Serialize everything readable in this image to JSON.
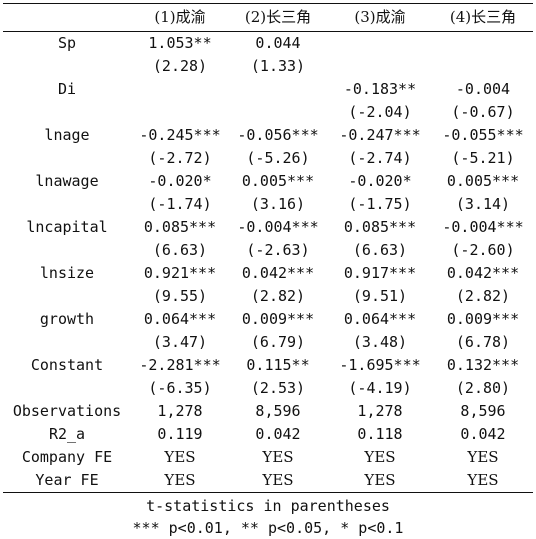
{
  "columns": [
    "",
    "(1)成渝",
    "(2)长三角",
    "(3)成渝",
    "(4)长三角"
  ],
  "rows": [
    {
      "label": "Sp",
      "values": [
        "1.053**",
        "0.044",
        "",
        ""
      ]
    },
    {
      "label": "",
      "values": [
        "(2.28)",
        "(1.33)",
        "",
        ""
      ]
    },
    {
      "label": "Di",
      "values": [
        "",
        "",
        "-0.183**",
        "-0.004"
      ]
    },
    {
      "label": "",
      "values": [
        "",
        "",
        "(-2.04)",
        "(-0.67)"
      ]
    },
    {
      "label": "lnage",
      "values": [
        "-0.245***",
        "-0.056***",
        "-0.247***",
        "-0.055***"
      ]
    },
    {
      "label": "",
      "values": [
        "(-2.72)",
        "(-5.26)",
        "(-2.74)",
        "(-5.21)"
      ]
    },
    {
      "label": "lnawage",
      "values": [
        "-0.020*",
        "0.005***",
        "-0.020*",
        "0.005***"
      ]
    },
    {
      "label": "",
      "values": [
        "(-1.74)",
        "(3.16)",
        "(-1.75)",
        "(3.14)"
      ]
    },
    {
      "label": "lncapital",
      "values": [
        "0.085***",
        "-0.004***",
        "0.085***",
        "-0.004***"
      ]
    },
    {
      "label": "",
      "values": [
        "(6.63)",
        "(-2.63)",
        "(6.63)",
        "(-2.60)"
      ]
    },
    {
      "label": "lnsize",
      "values": [
        "0.921***",
        "0.042***",
        "0.917***",
        "0.042***"
      ]
    },
    {
      "label": "",
      "values": [
        "(9.55)",
        "(2.82)",
        "(9.51)",
        "(2.82)"
      ]
    },
    {
      "label": "growth",
      "values": [
        "0.064***",
        "0.009***",
        "0.064***",
        "0.009***"
      ]
    },
    {
      "label": "",
      "values": [
        "(3.47)",
        "(6.79)",
        "(3.48)",
        "(6.78)"
      ]
    },
    {
      "label": "Constant",
      "values": [
        "-2.281***",
        "0.115**",
        "-1.695***",
        "0.132***"
      ]
    },
    {
      "label": "",
      "values": [
        "(-6.35)",
        "(2.53)",
        "(-4.19)",
        "(2.80)"
      ]
    },
    {
      "label": "Observations",
      "values": [
        "1,278",
        "8,596",
        "1,278",
        "8,596"
      ]
    },
    {
      "label": "R2_a",
      "values": [
        "0.119",
        "0.042",
        "0.118",
        "0.042"
      ]
    },
    {
      "label": "Company FE",
      "values": [
        "YES",
        "YES",
        "YES",
        "YES"
      ]
    },
    {
      "label": "Year FE",
      "values": [
        "YES",
        "YES",
        "YES",
        "YES"
      ]
    }
  ],
  "notes": [
    "t-statistics in parentheses",
    "*** p<0.01, ** p<0.05, * p<0.1"
  ]
}
